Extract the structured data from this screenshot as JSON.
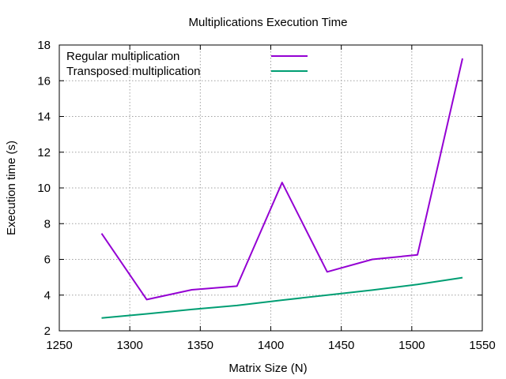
{
  "chart_data": {
    "type": "line",
    "title": "Multiplications Execution Time",
    "xlabel": "Matrix Size (N)",
    "ylabel": "Execution time (s)",
    "xlim": [
      1250,
      1550
    ],
    "ylim": [
      2,
      18
    ],
    "xticks": [
      1250,
      1300,
      1350,
      1400,
      1450,
      1500,
      1550
    ],
    "yticks": [
      2,
      4,
      6,
      8,
      10,
      12,
      14,
      16,
      18
    ],
    "grid": true,
    "legend_position": "top-left",
    "series": [
      {
        "name": "Regular multiplication",
        "color": "#9400d3",
        "x": [
          1280,
          1312,
          1344,
          1376,
          1408,
          1440,
          1472,
          1504,
          1536
        ],
        "y": [
          7.45,
          3.75,
          4.3,
          4.5,
          10.3,
          5.3,
          6.0,
          6.25,
          17.25
        ]
      },
      {
        "name": "Transposed multiplication",
        "color": "#009e73",
        "x": [
          1280,
          1312,
          1344,
          1376,
          1408,
          1440,
          1472,
          1504,
          1536
        ],
        "y": [
          2.72,
          2.95,
          3.2,
          3.42,
          3.72,
          4.0,
          4.28,
          4.6,
          4.98
        ]
      }
    ]
  }
}
